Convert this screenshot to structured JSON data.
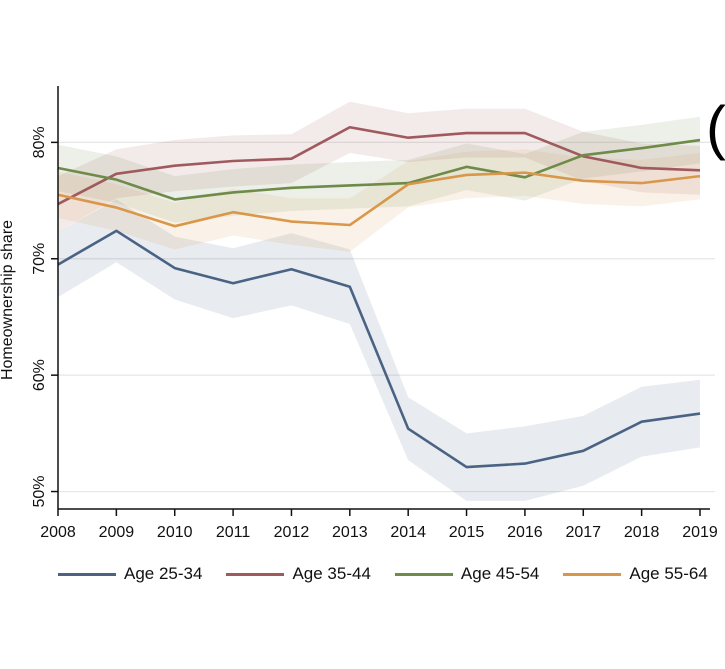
{
  "chart_data": {
    "type": "line",
    "title": "",
    "xlabel": "",
    "ylabel": "Homeownership share",
    "ylim": [
      48.5,
      84.5
    ],
    "xlim": [
      2008,
      2019
    ],
    "y_ticks": [
      50,
      60,
      70,
      80
    ],
    "y_tick_labels": [
      "50%",
      "60%",
      "70%",
      "80%"
    ],
    "x": [
      2008,
      2009,
      2010,
      2011,
      2012,
      2013,
      2014,
      2015,
      2016,
      2017,
      2018,
      2019
    ],
    "x_tick_labels": [
      "2008",
      "2009",
      "2010",
      "2011",
      "2012",
      "2013",
      "2014",
      "2015",
      "2016",
      "2017",
      "2018",
      "2019"
    ],
    "grid": true,
    "legend_position": "bottom",
    "series": [
      {
        "name": "Age 25-34",
        "color": "#4a6384",
        "values": [
          69.5,
          72.4,
          69.2,
          67.9,
          69.1,
          67.6,
          55.4,
          52.1,
          52.4,
          53.5,
          56.0,
          56.7
        ],
        "lower": [
          66.7,
          69.7,
          66.5,
          64.9,
          66.0,
          64.4,
          52.7,
          49.2,
          49.2,
          50.5,
          53.0,
          53.8
        ],
        "upper": [
          72.3,
          75.1,
          71.9,
          70.9,
          72.2,
          70.8,
          58.1,
          55.0,
          55.6,
          56.5,
          59.0,
          59.6
        ]
      },
      {
        "name": "Age 35-44",
        "color": "#a05a5e",
        "values": [
          74.7,
          77.3,
          78.0,
          78.4,
          78.6,
          81.3,
          80.4,
          80.8,
          80.8,
          78.8,
          77.8,
          77.6
        ],
        "lower": [
          72.3,
          75.2,
          75.8,
          76.2,
          76.5,
          79.1,
          78.3,
          78.7,
          78.7,
          76.7,
          75.7,
          75.5
        ],
        "upper": [
          77.1,
          79.4,
          80.2,
          80.6,
          80.7,
          83.5,
          82.5,
          82.9,
          82.9,
          80.9,
          79.9,
          79.7
        ]
      },
      {
        "name": "Age 45-54",
        "color": "#6e8b4a",
        "values": [
          77.8,
          76.8,
          75.1,
          75.7,
          76.1,
          76.3,
          76.5,
          77.9,
          77.0,
          78.9,
          79.5,
          80.2
        ],
        "lower": [
          75.8,
          74.8,
          73.1,
          73.7,
          74.1,
          74.3,
          74.5,
          75.9,
          75.0,
          76.9,
          77.5,
          78.2
        ],
        "upper": [
          79.8,
          78.8,
          77.1,
          77.7,
          78.1,
          78.3,
          78.5,
          79.9,
          79.0,
          80.9,
          81.5,
          82.2
        ]
      },
      {
        "name": "Age 55-64",
        "color": "#d9974a",
        "values": [
          75.5,
          74.4,
          72.8,
          74.0,
          73.2,
          72.9,
          76.4,
          77.2,
          77.4,
          76.7,
          76.5,
          77.1
        ],
        "lower": [
          73.5,
          72.4,
          70.8,
          72.0,
          71.2,
          70.6,
          74.4,
          75.2,
          75.4,
          74.7,
          74.5,
          75.1
        ],
        "upper": [
          77.5,
          76.4,
          74.8,
          76.0,
          75.2,
          75.2,
          78.4,
          79.2,
          79.4,
          78.7,
          78.5,
          79.1
        ]
      }
    ]
  }
}
